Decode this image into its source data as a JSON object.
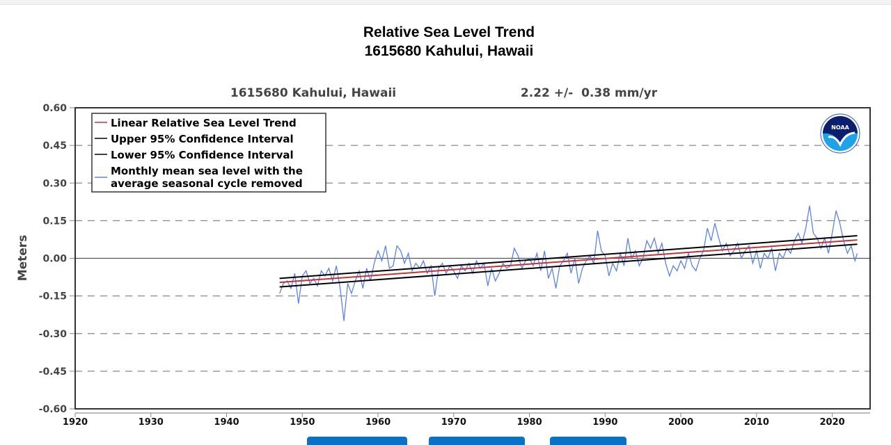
{
  "chart_data": {
    "type": "line",
    "title": "Relative Sea Level Trend",
    "subtitle": "1615680 Kahului, Hawaii",
    "plot_station_label": "1615680 Kahului, Hawaii",
    "plot_trend_label": "2.22 +/-  0.38 mm/yr",
    "ylabel": "Meters",
    "xlabel": "",
    "xlim": [
      1920,
      2025
    ],
    "ylim": [
      -0.6,
      0.6
    ],
    "x_ticks": [
      "1920",
      "1930",
      "1940",
      "1950",
      "1960",
      "1970",
      "1980",
      "1990",
      "2000",
      "2010",
      "2020"
    ],
    "y_ticks": [
      "0.60",
      "0.45",
      "0.30",
      "0.15",
      "0.00",
      "-0.15",
      "-0.30",
      "-0.45",
      "-0.60"
    ],
    "grid": "horizontal dashed",
    "legend_placement": "top-left",
    "legend": [
      {
        "label": "Linear Relative Sea Level Trend",
        "color": "#c83232"
      },
      {
        "label": "Upper 95% Confidence Interval",
        "color": "#000000"
      },
      {
        "label": "Lower 95% Confidence Interval",
        "color": "#000000"
      },
      {
        "label": "Monthly mean sea level with the",
        "label2": "average seasonal cycle removed",
        "color": "#5b82e6"
      }
    ],
    "trend": {
      "rate_mm_per_yr": 2.22,
      "ci_mm_per_yr": 0.38,
      "start": [
        1947,
        -0.096
      ],
      "end": [
        2023.3,
        0.073
      ]
    },
    "upper_ci": {
      "start": [
        1947,
        -0.08
      ],
      "end": [
        2023.3,
        0.09
      ]
    },
    "lower_ci": {
      "start": [
        1947,
        -0.114
      ],
      "end": [
        2023.3,
        0.056
      ]
    },
    "series": [
      {
        "color": "#5b82e6",
        "points": [
          [
            1947,
            -0.14
          ],
          [
            1947.5,
            -0.1
          ],
          [
            1948,
            -0.09
          ],
          [
            1948.5,
            -0.12
          ],
          [
            1949,
            -0.06
          ],
          [
            1949.5,
            -0.18
          ],
          [
            1950,
            -0.07
          ],
          [
            1950.5,
            -0.05
          ],
          [
            1951,
            -0.1
          ],
          [
            1951.5,
            -0.08
          ],
          [
            1952,
            -0.11
          ],
          [
            1952.5,
            -0.05
          ],
          [
            1953,
            -0.07
          ],
          [
            1953.5,
            -0.04
          ],
          [
            1954,
            -0.09
          ],
          [
            1954.5,
            -0.03
          ],
          [
            1955,
            -0.12
          ],
          [
            1955.5,
            -0.25
          ],
          [
            1956,
            -0.1
          ],
          [
            1956.5,
            -0.14
          ],
          [
            1957,
            -0.09
          ],
          [
            1957.5,
            -0.05
          ],
          [
            1958,
            -0.12
          ],
          [
            1958.5,
            -0.04
          ],
          [
            1959,
            -0.09
          ],
          [
            1959.5,
            -0.02
          ],
          [
            1960,
            0.03
          ],
          [
            1960.5,
            -0.01
          ],
          [
            1961,
            0.05
          ],
          [
            1961.5,
            -0.04
          ],
          [
            1962,
            -0.03
          ],
          [
            1962.5,
            0.05
          ],
          [
            1963,
            0.03
          ],
          [
            1963.5,
            -0.02
          ],
          [
            1964,
            0.02
          ],
          [
            1964.5,
            -0.05
          ],
          [
            1965,
            -0.02
          ],
          [
            1965.5,
            -0.04
          ],
          [
            1966,
            -0.01
          ],
          [
            1966.5,
            -0.06
          ],
          [
            1967,
            -0.03
          ],
          [
            1967.5,
            -0.15
          ],
          [
            1968,
            -0.04
          ],
          [
            1968.5,
            -0.02
          ],
          [
            1969,
            -0.06
          ],
          [
            1969.5,
            -0.03
          ],
          [
            1970,
            -0.05
          ],
          [
            1970.5,
            -0.08
          ],
          [
            1971,
            -0.03
          ],
          [
            1971.5,
            -0.05
          ],
          [
            1972,
            -0.02
          ],
          [
            1972.5,
            -0.06
          ],
          [
            1973,
            -0.01
          ],
          [
            1973.5,
            -0.04
          ],
          [
            1974,
            -0.02
          ],
          [
            1974.5,
            -0.11
          ],
          [
            1975,
            -0.04
          ],
          [
            1975.5,
            -0.09
          ],
          [
            1976,
            -0.06
          ],
          [
            1976.5,
            -0.02
          ],
          [
            1977,
            -0.04
          ],
          [
            1977.5,
            -0.03
          ],
          [
            1978,
            0.04
          ],
          [
            1978.5,
            0.01
          ],
          [
            1979,
            -0.04
          ],
          [
            1979.5,
            -0.01
          ],
          [
            1980,
            0.0
          ],
          [
            1980.5,
            -0.03
          ],
          [
            1981,
            0.02
          ],
          [
            1981.5,
            -0.05
          ],
          [
            1982,
            0.03
          ],
          [
            1982.5,
            -0.08
          ],
          [
            1983,
            -0.04
          ],
          [
            1983.5,
            -0.12
          ],
          [
            1984,
            -0.03
          ],
          [
            1984.5,
            -0.01
          ],
          [
            1985,
            0.02
          ],
          [
            1985.5,
            -0.06
          ],
          [
            1986,
            0.0
          ],
          [
            1986.5,
            -0.1
          ],
          [
            1987,
            -0.04
          ],
          [
            1987.5,
            -0.01
          ],
          [
            1988,
            0.01
          ],
          [
            1988.5,
            -0.02
          ],
          [
            1989,
            0.11
          ],
          [
            1989.5,
            0.03
          ],
          [
            1990,
            0.01
          ],
          [
            1990.5,
            -0.07
          ],
          [
            1991,
            -0.02
          ],
          [
            1991.5,
            -0.05
          ],
          [
            1992,
            0.02
          ],
          [
            1992.5,
            -0.03
          ],
          [
            1993,
            0.08
          ],
          [
            1993.5,
            0.0
          ],
          [
            1994,
            0.03
          ],
          [
            1994.5,
            -0.03
          ],
          [
            1995,
            0.0
          ],
          [
            1995.5,
            0.07
          ],
          [
            1996,
            0.04
          ],
          [
            1996.5,
            0.08
          ],
          [
            1997,
            0.02
          ],
          [
            1997.5,
            0.06
          ],
          [
            1998,
            -0.02
          ],
          [
            1998.5,
            -0.07
          ],
          [
            1999,
            -0.03
          ],
          [
            1999.5,
            -0.05
          ],
          [
            2000,
            -0.01
          ],
          [
            2000.5,
            -0.04
          ],
          [
            2001,
            0.02
          ],
          [
            2001.5,
            -0.03
          ],
          [
            2002,
            -0.05
          ],
          [
            2002.5,
            0.0
          ],
          [
            2003,
            0.03
          ],
          [
            2003.5,
            0.12
          ],
          [
            2004,
            0.07
          ],
          [
            2004.5,
            0.14
          ],
          [
            2005,
            0.08
          ],
          [
            2005.5,
            0.03
          ],
          [
            2006,
            0.06
          ],
          [
            2006.5,
            0.01
          ],
          [
            2007,
            0.03
          ],
          [
            2007.5,
            0.06
          ],
          [
            2008,
            0.0
          ],
          [
            2008.5,
            0.03
          ],
          [
            2009,
            0.05
          ],
          [
            2009.5,
            -0.02
          ],
          [
            2010,
            0.03
          ],
          [
            2010.5,
            -0.04
          ],
          [
            2011,
            0.02
          ],
          [
            2011.5,
            0.0
          ],
          [
            2012,
            0.04
          ],
          [
            2012.5,
            -0.05
          ],
          [
            2013,
            0.02
          ],
          [
            2013.5,
            0.0
          ],
          [
            2014,
            0.04
          ],
          [
            2014.5,
            0.02
          ],
          [
            2015,
            0.07
          ],
          [
            2015.5,
            0.1
          ],
          [
            2016,
            0.06
          ],
          [
            2016.5,
            0.12
          ],
          [
            2017,
            0.21
          ],
          [
            2017.5,
            0.1
          ],
          [
            2018,
            0.08
          ],
          [
            2018.5,
            0.04
          ],
          [
            2019,
            0.08
          ],
          [
            2019.5,
            0.02
          ],
          [
            2020,
            0.1
          ],
          [
            2020.5,
            0.19
          ],
          [
            2021,
            0.14
          ],
          [
            2021.5,
            0.07
          ],
          [
            2022,
            0.02
          ],
          [
            2022.5,
            0.05
          ],
          [
            2023,
            -0.01
          ],
          [
            2023.3,
            0.02
          ]
        ]
      }
    ],
    "logo": "NOAA"
  },
  "buttons": [
    {
      "color": "#0a72c6"
    },
    {
      "color": "#0a72c6"
    },
    {
      "color": "#0a72c6"
    }
  ]
}
